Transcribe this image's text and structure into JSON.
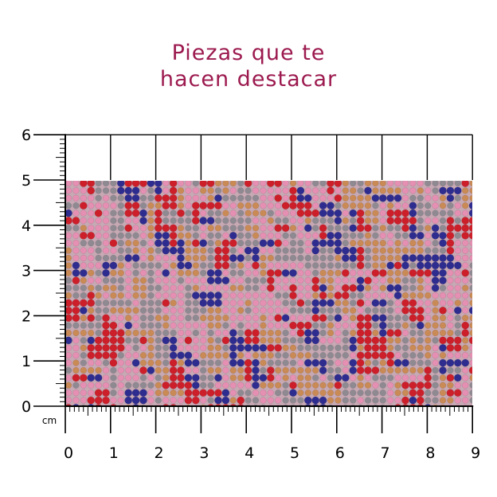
{
  "title": {
    "line1": "Piezas que te",
    "line2": "hacen destacar",
    "color": "#9c1a4f"
  },
  "ruler": {
    "unit": "cm",
    "x_ticks": [
      "0",
      "1",
      "2",
      "3",
      "4",
      "5",
      "6",
      "7",
      "8",
      "9"
    ],
    "y_ticks": [
      "0",
      "1",
      "2",
      "3",
      "4",
      "5",
      "6"
    ],
    "x_range": [
      0,
      9
    ],
    "y_range": [
      0,
      6
    ]
  },
  "swatch": {
    "description_colors": [
      "#2e2d8f",
      "#cc1f2a",
      "#e58fb3",
      "#c98a55",
      "#8f8a92"
    ],
    "width_cm": 9,
    "height_cm": 5
  }
}
